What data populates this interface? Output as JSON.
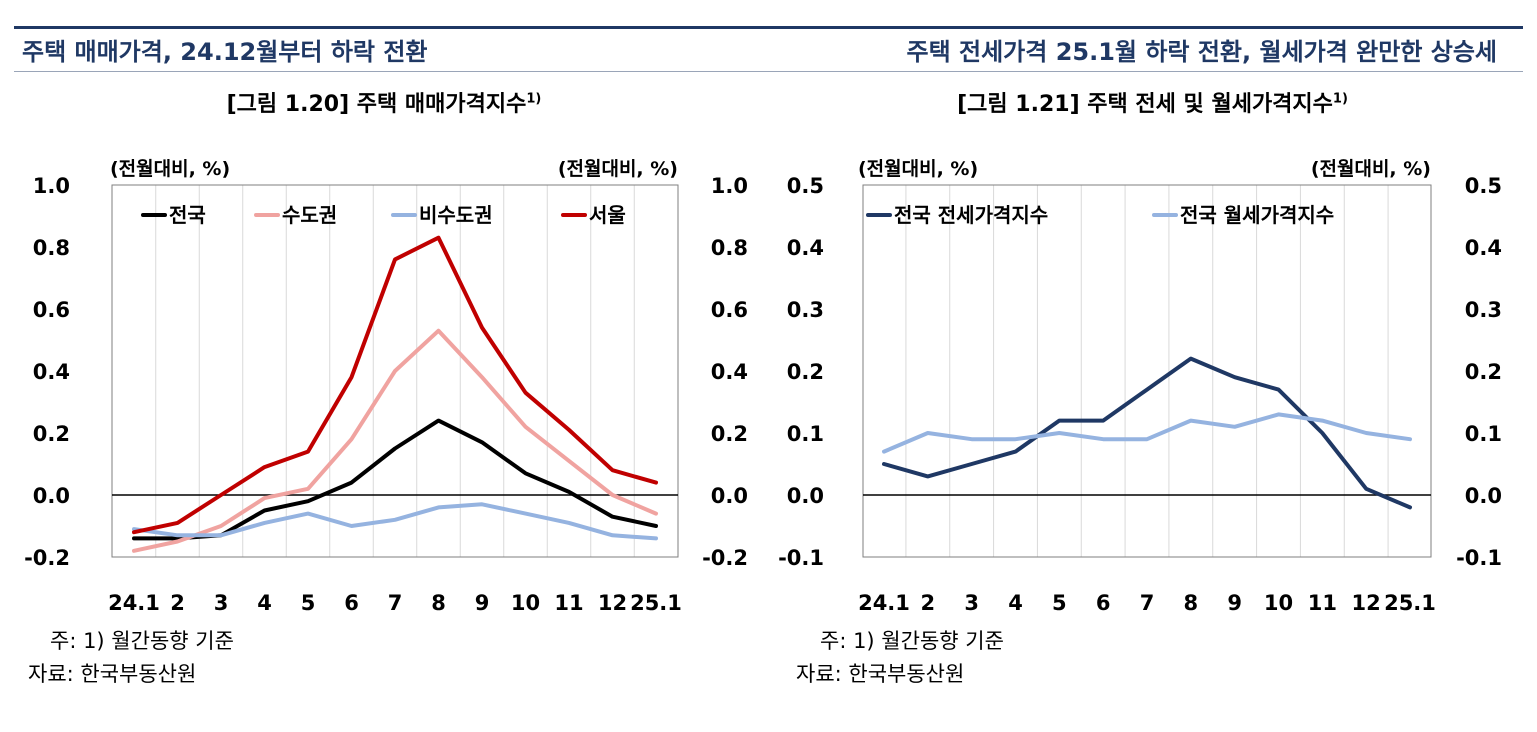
{
  "left": {
    "headline": "주택 매매가격, 24.12월부터 하락 전환",
    "figure_label": "[그림 1.20] 주택 매매가격지수",
    "figure_sup": "1)",
    "note": "주: 1) 월간동향 기준",
    "source": "자료: 한국부동산원"
  },
  "right": {
    "headline": "주택 전세가격 25.1월 하락 전환, 월세가격 완만한 상승세",
    "figure_label": "[그림 1.21] 주택 전세 및 월세가격지수",
    "figure_sup": "1)",
    "note": "주: 1) 월간동향 기준",
    "source": "자료: 한국부동산원"
  },
  "chart_data": [
    {
      "type": "line",
      "title": "[그림 1.20] 주택 매매가격지수",
      "unit_left": "(전월대비, %)",
      "unit_right": "(전월대비, %)",
      "categories": [
        "24.1",
        "2",
        "3",
        "4",
        "5",
        "6",
        "7",
        "8",
        "9",
        "10",
        "11",
        "12",
        "25.1"
      ],
      "ylim": [
        -0.2,
        1.0
      ],
      "yticks": [
        "1.0",
        "0.8",
        "0.6",
        "0.4",
        "0.2",
        "0.0",
        "-0.2"
      ],
      "grid": true,
      "legend_position": "top",
      "series": [
        {
          "name": "전국",
          "color": "#000000",
          "values": [
            -0.14,
            -0.14,
            -0.13,
            -0.05,
            -0.02,
            0.04,
            0.15,
            0.24,
            0.17,
            0.07,
            0.01,
            -0.07,
            -0.1
          ]
        },
        {
          "name": "수도권",
          "color": "#f0a3a0",
          "values": [
            -0.18,
            -0.15,
            -0.1,
            -0.01,
            0.02,
            0.18,
            0.4,
            0.53,
            0.38,
            0.22,
            0.11,
            0.0,
            -0.06
          ]
        },
        {
          "name": "비수도권",
          "color": "#95b3e0",
          "values": [
            -0.11,
            -0.13,
            -0.13,
            -0.09,
            -0.06,
            -0.1,
            -0.08,
            -0.04,
            -0.03,
            -0.06,
            -0.09,
            -0.13,
            -0.14
          ]
        },
        {
          "name": "서울",
          "color": "#c00000",
          "values": [
            -0.12,
            -0.09,
            0.0,
            0.09,
            0.14,
            0.38,
            0.76,
            0.83,
            0.54,
            0.33,
            0.21,
            0.08,
            0.04
          ]
        }
      ]
    },
    {
      "type": "line",
      "title": "[그림 1.21] 주택 전세 및 월세가격지수",
      "unit_left": "(전월대비, %)",
      "unit_right": "(전월대비, %)",
      "categories": [
        "24.1",
        "2",
        "3",
        "4",
        "5",
        "6",
        "7",
        "8",
        "9",
        "10",
        "11",
        "12",
        "25.1"
      ],
      "ylim": [
        -0.1,
        0.5
      ],
      "yticks": [
        "0.5",
        "0.4",
        "0.3",
        "0.2",
        "0.1",
        "0.0",
        "-0.1"
      ],
      "grid": true,
      "legend_position": "top",
      "series": [
        {
          "name": "전국 전세가격지수",
          "color": "#1f3864",
          "values": [
            0.05,
            0.03,
            0.05,
            0.07,
            0.12,
            0.12,
            0.17,
            0.22,
            0.19,
            0.17,
            0.1,
            0.01,
            -0.02
          ]
        },
        {
          "name": "전국 월세가격지수",
          "color": "#95b3e0",
          "values": [
            0.07,
            0.1,
            0.09,
            0.09,
            0.1,
            0.09,
            0.09,
            0.12,
            0.11,
            0.13,
            0.12,
            0.1,
            0.09
          ]
        }
      ]
    }
  ]
}
